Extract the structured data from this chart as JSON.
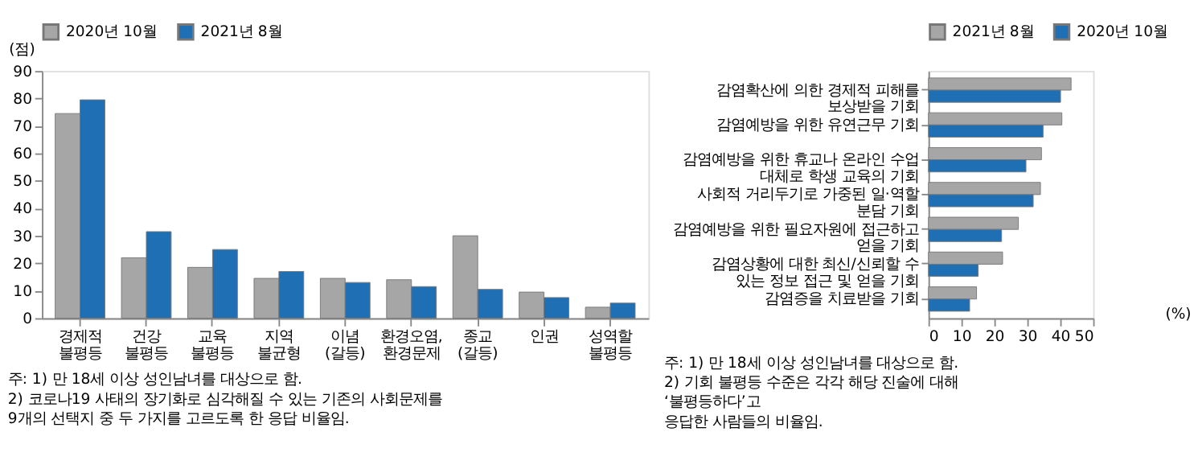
{
  "chart_data": [
    {
      "type": "bar",
      "ylabel": "(점)",
      "categories": [
        "경제적 불평등",
        "건강 불평등",
        "교육 불평등",
        "지역 불균형",
        "이념 (갈등)",
        "환경오염, 환경문제",
        "종교 (갈등)",
        "인권",
        "성역할 불평등"
      ],
      "series": [
        {
          "name": "2020년 10월",
          "color": "#a6a6a6",
          "values": [
            74.5,
            22,
            18.5,
            14.5,
            14.5,
            14,
            30,
            9.5,
            4
          ]
        },
        {
          "name": "2021년 8월",
          "color": "#1f6fb5",
          "values": [
            79.5,
            31.5,
            25,
            17,
            13,
            11.5,
            10.5,
            7.5,
            5.5
          ]
        }
      ],
      "ylim": [
        0,
        90
      ],
      "yticks": [
        0,
        10,
        20,
        30,
        40,
        50,
        60,
        70,
        80,
        90
      ],
      "grid": false,
      "legend": "top",
      "annotations": [
        "주: 1) 만 18세 이상 성인남녀를 대상으로 함.",
        "2) 코로나19 사태의 장기화로 심각해질 수 있는 기존의 사회문제를",
        "9개의 선택지 중 두 가지를 고르도록 한 응답 비율임."
      ]
    },
    {
      "type": "bar",
      "orientation": "horizontal",
      "xlabel": "(%)",
      "categories": [
        "감염확산에 의한 경제적 피해를 보상받을 기회",
        "감염예방을 위한 유연근무 기회",
        "감염예방을 위한 휴교나 온라인 수업 대체로 학생 교육의 기회",
        "사회적 거리두기로 가중된 일·역할 분담 기회",
        "감염예방을 위한 필요자원에 접근하고 얻을 기회",
        "감염상황에 대한 최신/신뢰할 수 있는 정보 접근 및 얻을 기회",
        "감염증을 치료받을 기회"
      ],
      "series": [
        {
          "name": "2021년 8월",
          "color": "#a6a6a6",
          "values": [
            43.3,
            40.5,
            34.3,
            34,
            27.3,
            22.5,
            14.6
          ]
        },
        {
          "name": "2020년 10월",
          "color": "#1f6fb5",
          "values": [
            40.1,
            34.8,
            29.6,
            31.8,
            22.2,
            15.1,
            12.5
          ]
        }
      ],
      "xlim": [
        0,
        50
      ],
      "xticks": [
        0,
        10,
        20,
        30,
        40,
        50
      ],
      "grid": false,
      "legend": "top",
      "annotations": [
        "주: 1) 만 18세 이상 성인남녀를 대상으로 함.",
        "2) 기회 불평등 수준은 각각 해당 진술에 대해 ‘불평등하다’고",
        "응답한 사람들의 비율임."
      ]
    }
  ]
}
